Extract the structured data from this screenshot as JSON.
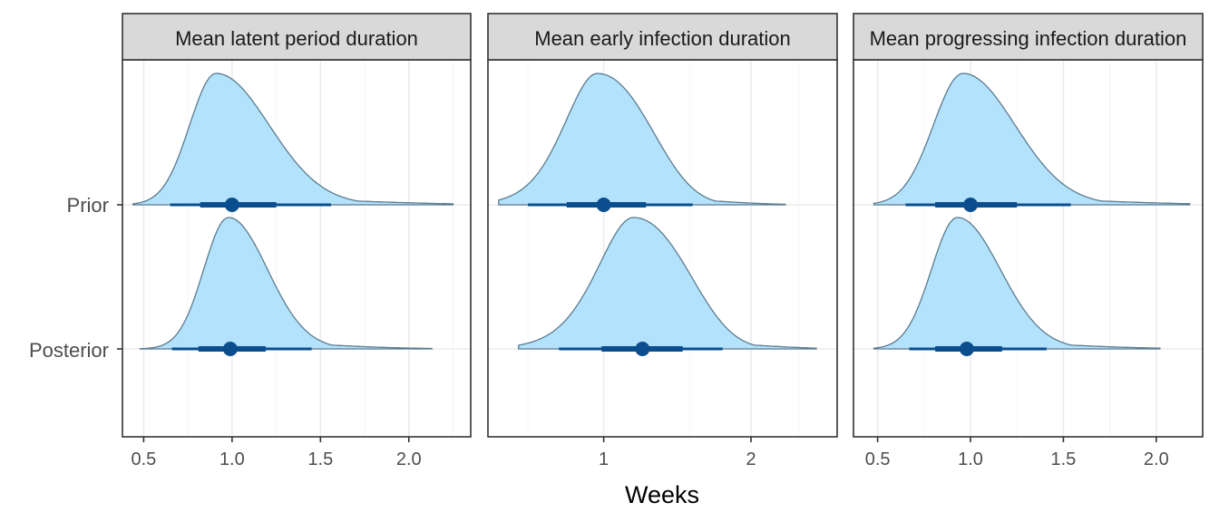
{
  "chart_data": {
    "type": "density",
    "xlabel": "Weeks",
    "ylabel": "",
    "rows": [
      "Prior",
      "Posterior"
    ],
    "colors": {
      "fill": "#b3e2fc",
      "outline": "#5b7b8f",
      "interval": "#0b4e8e",
      "grid_major": "#ebebeb",
      "grid_minor": "#f5f5f5",
      "panel_border": "#333333",
      "strip_fill": "#d9d9d9"
    },
    "panels": [
      {
        "title": "Mean latent period duration",
        "scale": "linear",
        "xlim": [
          0.38,
          2.35
        ],
        "ticks": [
          0.5,
          1.0,
          1.5,
          2.0
        ],
        "tick_labels": [
          "0.5",
          "1.0",
          "1.5",
          "2.0"
        ],
        "series": [
          {
            "name": "Prior",
            "support": [
              0.44,
              2.25
            ],
            "peak": 0.91,
            "sd_left": 0.15,
            "sd_right": 0.3,
            "median": 1.0,
            "interval_66": [
              0.82,
              1.25
            ],
            "interval_95": [
              0.65,
              1.56
            ]
          },
          {
            "name": "Posterior",
            "support": [
              0.48,
              2.13
            ],
            "peak": 0.98,
            "sd_left": 0.14,
            "sd_right": 0.22,
            "median": 0.99,
            "interval_66": [
              0.81,
              1.19
            ],
            "interval_95": [
              0.66,
              1.45
            ]
          }
        ]
      },
      {
        "title": "Mean early infection duration",
        "scale": "log",
        "xlim": [
          0.58,
          3.0
        ],
        "ticks": [
          1,
          2
        ],
        "tick_labels": [
          "1",
          "2"
        ],
        "series": [
          {
            "name": "Prior",
            "support": [
              0.61,
              2.35
            ],
            "peak": 0.97,
            "sd_left": 0.14,
            "sd_right": 0.27,
            "median": 1.0,
            "interval_66": [
              0.84,
              1.22
            ],
            "interval_95": [
              0.7,
              1.52
            ]
          },
          {
            "name": "Posterior",
            "support": [
              0.67,
              2.72
            ],
            "peak": 1.15,
            "sd_left": 0.18,
            "sd_right": 0.33,
            "median": 1.2,
            "interval_66": [
              0.99,
              1.45
            ],
            "interval_95": [
              0.81,
              1.75
            ]
          }
        ]
      },
      {
        "title": "Mean progressing infection duration",
        "scale": "linear",
        "xlim": [
          0.37,
          2.25
        ],
        "ticks": [
          0.5,
          1.0,
          1.5,
          2.0
        ],
        "tick_labels": [
          "0.5",
          "1.0",
          "1.5",
          "2.0"
        ],
        "series": [
          {
            "name": "Prior",
            "support": [
              0.48,
              2.18
            ],
            "peak": 0.96,
            "sd_left": 0.16,
            "sd_right": 0.28,
            "median": 1.0,
            "interval_66": [
              0.81,
              1.25
            ],
            "interval_95": [
              0.65,
              1.54
            ]
          },
          {
            "name": "Posterior",
            "support": [
              0.48,
              2.02
            ],
            "peak": 0.93,
            "sd_left": 0.14,
            "sd_right": 0.23,
            "median": 0.98,
            "interval_66": [
              0.81,
              1.17
            ],
            "interval_95": [
              0.67,
              1.41
            ]
          }
        ]
      }
    ]
  }
}
